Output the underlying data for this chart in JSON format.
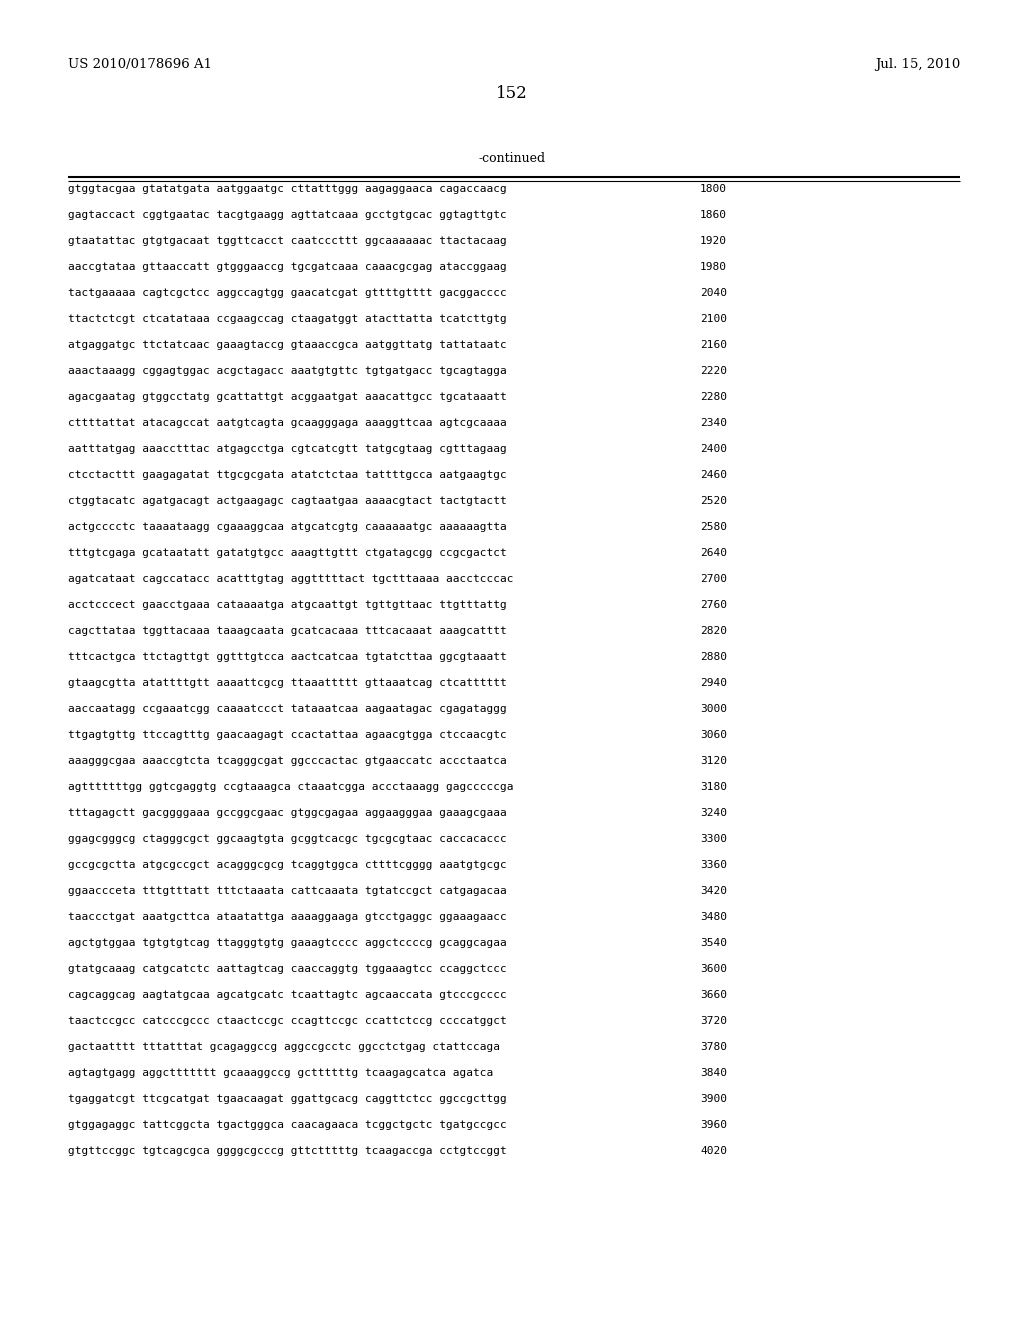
{
  "patent_left": "US 2010/0178696 A1",
  "patent_right": "Jul. 15, 2010",
  "page_number": "152",
  "continued_label": "-continued",
  "background_color": "#ffffff",
  "text_color": "#000000",
  "sequence_rows": [
    {
      "seq": "gtggtacgaa gtatatgata aatggaatgc cttatttggg aagaggaaca cagaccaacg",
      "num": "1800"
    },
    {
      "seq": "gagtaccact cggtgaatac tacgtgaagg agttatcaaa gcctgtgcac ggtagttgtc",
      "num": "1860"
    },
    {
      "seq": "gtaatattac gtgtgacaat tggttcacct caatcccttt ggcaaaaaac ttactacaag",
      "num": "1920"
    },
    {
      "seq": "aaccgtataa gttaaccatt gtgggaaccg tgcgatcaaa caaacgcgag ataccggaag",
      "num": "1980"
    },
    {
      "seq": "tactgaaaaa cagtcgctcc aggccagtgg gaacatcgat gttttgtttt gacggacccc",
      "num": "2040"
    },
    {
      "seq": "ttactctcgt ctcatataaa ccgaagccag ctaagatggt atacttatta tcatcttgtg",
      "num": "2100"
    },
    {
      "seq": "atgaggatgc ttctatcaac gaaagtaccg gtaaaccgca aatggttatg tattataatc",
      "num": "2160"
    },
    {
      "seq": "aaactaaagg cggagtggac acgctagacc aaatgtgttc tgtgatgacc tgcagtagga",
      "num": "2220"
    },
    {
      "seq": "agacgaatag gtggcctatg gcattattgt acggaatgat aaacattgcc tgcataaatt",
      "num": "2280"
    },
    {
      "seq": "cttttattat atacagccat aatgtcagta gcaagggaga aaaggttcaa agtcgcaaaa",
      "num": "2340"
    },
    {
      "seq": "aatttatgag aaacctttac atgagcctga cgtcatcgtt tatgcgtaag cgtttagaag",
      "num": "2400"
    },
    {
      "seq": "ctcctacttt gaagagatat ttgcgcgata atatctctaa tattttgcca aatgaagtgc",
      "num": "2460"
    },
    {
      "seq": "ctggtacatc agatgacagt actgaagagc cagtaatgaa aaaacgtact tactgtactt",
      "num": "2520"
    },
    {
      "seq": "actgcccctc taaaataagg cgaaaggcaa atgcatcgtg caaaaaatgc aaaaaagtta",
      "num": "2580"
    },
    {
      "seq": "tttgtcgaga gcataatatt gatatgtgcc aaagttgttt ctgatagcgg ccgcgactct",
      "num": "2640"
    },
    {
      "seq": "agatcataat cagccatacc acatttgtag aggtttttact tgctttaaaa aacctcccac",
      "num": "2700"
    },
    {
      "seq": "acctcccect gaacctgaaa cataaaatga atgcaattgt tgttgttaac ttgtttattg",
      "num": "2760"
    },
    {
      "seq": "cagcttataa tggttacaaa taaagcaata gcatcacaaa tttcacaaat aaagcatttt",
      "num": "2820"
    },
    {
      "seq": "tttcactgca ttctagttgt ggtttgtcca aactcatcaa tgtatcttaa ggcgtaaatt",
      "num": "2880"
    },
    {
      "seq": "gtaagcgtta atattttgtt aaaattcgcg ttaaattttt gttaaatcag ctcatttttt",
      "num": "2940"
    },
    {
      "seq": "aaccaatagg ccgaaatcgg caaaatccct tataaatcaa aagaatagac cgagataggg",
      "num": "3000"
    },
    {
      "seq": "ttgagtgttg ttccagtttg gaacaagagt ccactattaa agaacgtgga ctccaacgtc",
      "num": "3060"
    },
    {
      "seq": "aaagggcgaa aaaccgtcta tcagggcgat ggcccactac gtgaaccatc accctaatca",
      "num": "3120"
    },
    {
      "seq": "agtttttttgg ggtcgaggtg ccgtaaagca ctaaatcgga accctaaagg gagcccccga",
      "num": "3180"
    },
    {
      "seq": "tttagagctt gacggggaaa gccggcgaac gtggcgagaa aggaagggaa gaaagcgaaa",
      "num": "3240"
    },
    {
      "seq": "ggagcgggcg ctagggcgct ggcaagtgta gcggtcacgc tgcgcgtaac caccacaccc",
      "num": "3300"
    },
    {
      "seq": "gccgcgctta atgcgccgct acagggcgcg tcaggtggca cttttcgggg aaatgtgcgc",
      "num": "3360"
    },
    {
      "seq": "ggaaccceta tttgtttatt tttctaaata cattcaaata tgtatccgct catgagacaa",
      "num": "3420"
    },
    {
      "seq": "taaccctgat aaatgcttca ataatattga aaaaggaaga gtcctgaggc ggaaagaacc",
      "num": "3480"
    },
    {
      "seq": "agctgtggaa tgtgtgtcag ttagggtgtg gaaagtcccc aggctccccg gcaggcagaa",
      "num": "3540"
    },
    {
      "seq": "gtatgcaaag catgcatctc aattagtcag caaccaggtg tggaaagtcc ccaggctccc",
      "num": "3600"
    },
    {
      "seq": "cagcaggcag aagtatgcaa agcatgcatc tcaattagtc agcaaccata gtcccgcccc",
      "num": "3660"
    },
    {
      "seq": "taactccgcc catcccgccc ctaactccgc ccagttccgc ccattctccg ccccatggct",
      "num": "3720"
    },
    {
      "seq": "gactaatttt tttatttat gcagaggccg aggccgcctc ggcctctgag ctattccaga",
      "num": "3780"
    },
    {
      "seq": "agtagtgagg aggcttttttt gcaaaggccg gcttttttg tcaagagcatca agatca",
      "num": "3840"
    },
    {
      "seq": "tgaggatcgt ttcgcatgat tgaacaagat ggattgcacg caggttctcc ggccgcttgg",
      "num": "3900"
    },
    {
      "seq": "gtggagaggc tattcggcta tgactgggca caacagaaca tcggctgctc tgatgccgcc",
      "num": "3960"
    },
    {
      "seq": "gtgttccggc tgtcagcgca ggggcgcccg gttctttttg tcaagaccga cctgtccggt",
      "num": "4020"
    }
  ]
}
